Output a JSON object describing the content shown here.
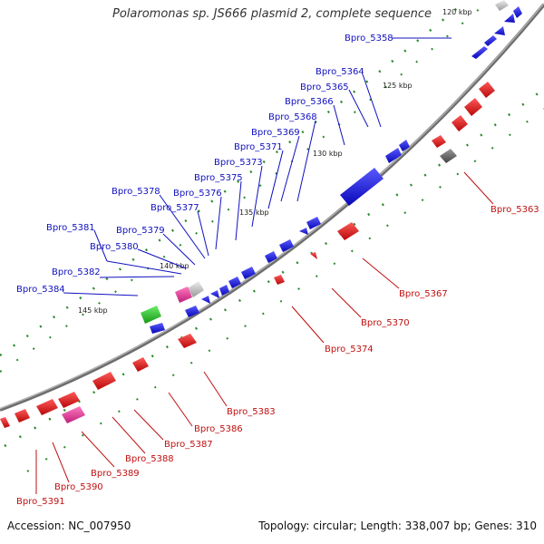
{
  "title": "Polaromonas sp. JS666 plasmid 2, complete sequence",
  "footer": {
    "accession": "Accession: NC_007950",
    "topology": "Topology: circular; Length: 338,007 bp; Genes: 310"
  },
  "ticks": [
    {
      "text": "120 kbp",
      "kind": "tick"
    },
    {
      "text": "125 kbp",
      "kind": "tick"
    },
    {
      "text": "130 kbp",
      "kind": "tick"
    },
    {
      "text": "135 kbp",
      "kind": "tick"
    },
    {
      "text": "140 kbp",
      "kind": "tick"
    },
    {
      "text": "145 kbp",
      "kind": "tick"
    }
  ],
  "labels": {
    "blue": [
      "Bpro_5358",
      "Bpro_5364",
      "Bpro_5365",
      "Bpro_5366",
      "Bpro_5368",
      "Bpro_5369",
      "Bpro_5371",
      "Bpro_5373",
      "Bpro_5375",
      "Bpro_5376",
      "Bpro_5377",
      "Bpro_5378",
      "Bpro_5379",
      "Bpro_5380",
      "Bpro_5381",
      "Bpro_5382",
      "Bpro_5384"
    ],
    "red": [
      "Bpro_5363",
      "Bpro_5367",
      "Bpro_5370",
      "Bpro_5374",
      "Bpro_5383",
      "Bpro_5386",
      "Bpro_5387",
      "Bpro_5388",
      "Bpro_5389",
      "Bpro_5390",
      "Bpro_5391"
    ]
  },
  "colors": {
    "forward_gene": "#1a1ae6",
    "reverse_gene": "#e61a1a",
    "rna_gene": "#cccccc",
    "pseudo_gene": "#777777",
    "pink_gene": "#e0489a",
    "green_gene": "#2ec42e",
    "backbone": "#777777",
    "gc_dot": "#2a8a2a"
  }
}
